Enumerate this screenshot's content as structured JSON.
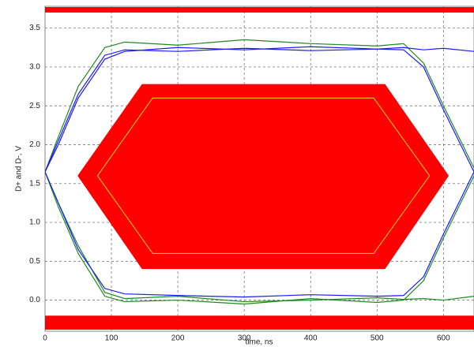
{
  "chart_data": {
    "type": "eye",
    "xlabel": "time, ns",
    "ylabel": "D+ and D-, V",
    "xlim": [
      0,
      646
    ],
    "ylim": [
      -0.4,
      3.78
    ],
    "xticks": [
      0,
      100,
      200,
      300,
      400,
      500,
      600
    ],
    "yticks": [
      {
        "value": 0,
        "label": "0.0"
      },
      {
        "value": 0.5,
        "label": "0.5"
      },
      {
        "value": 1,
        "label": "1.0"
      },
      {
        "value": 1.5,
        "label": "1.5"
      },
      {
        "value": 2,
        "label": "2.0"
      },
      {
        "value": 2.5,
        "label": "2.5"
      },
      {
        "value": 3,
        "label": "3.0"
      },
      {
        "value": 3.5,
        "label": "3.5"
      }
    ],
    "grid": true,
    "x": [
      0,
      20,
      50,
      90,
      120,
      200,
      300,
      400,
      500,
      540,
      570,
      600,
      646
    ],
    "series": [
      {
        "color": "#1f8a1f",
        "values": [
          1.65,
          2.1,
          2.75,
          3.25,
          3.32,
          3.28,
          3.35,
          3.3,
          3.27,
          3.3,
          3.05,
          2.5,
          1.7
        ]
      },
      {
        "color": "#1f8a1f",
        "values": [
          1.65,
          1.2,
          0.6,
          0.05,
          -0.02,
          0.0,
          -0.05,
          0.02,
          -0.03,
          0.0,
          0.25,
          0.8,
          1.6
        ]
      },
      {
        "color": "#1f8a1f",
        "values": [
          1.65,
          1.25,
          0.7,
          0.1,
          0.02,
          0.05,
          -0.02,
          0.0,
          0.03,
          0.01,
          0.02,
          0.0,
          0.05
        ]
      },
      {
        "color": "#1a1aff",
        "values": [
          1.65,
          2.05,
          2.65,
          3.15,
          3.22,
          3.2,
          3.24,
          3.21,
          3.23,
          3.22,
          3.0,
          2.45,
          1.65
        ]
      },
      {
        "color": "#1a1aff",
        "values": [
          1.65,
          1.25,
          0.65,
          0.15,
          0.08,
          0.06,
          0.04,
          0.07,
          0.05,
          0.06,
          0.3,
          0.85,
          1.65
        ]
      },
      {
        "color": "#1a1aff",
        "values": [
          1.65,
          2.0,
          2.6,
          3.1,
          3.2,
          3.25,
          3.22,
          3.26,
          3.23,
          3.25,
          3.22,
          3.24,
          3.2
        ]
      }
    ],
    "mask_color": "#ff0000",
    "mask_bands": [
      [
        3.7,
        3.77
      ],
      [
        -0.38,
        -0.2
      ]
    ],
    "mask_polygon": [
      [
        49,
        1.6
      ],
      [
        146,
        2.78
      ],
      [
        512,
        2.78
      ],
      [
        608,
        1.6
      ],
      [
        512,
        0.4
      ],
      [
        146,
        0.4
      ]
    ],
    "inner_polygon_color": "#ffd700",
    "inner_polygon": [
      [
        79,
        1.6
      ],
      [
        162,
        2.6
      ],
      [
        495,
        2.6
      ],
      [
        579,
        1.6
      ],
      [
        495,
        0.6
      ],
      [
        162,
        0.6
      ]
    ]
  }
}
